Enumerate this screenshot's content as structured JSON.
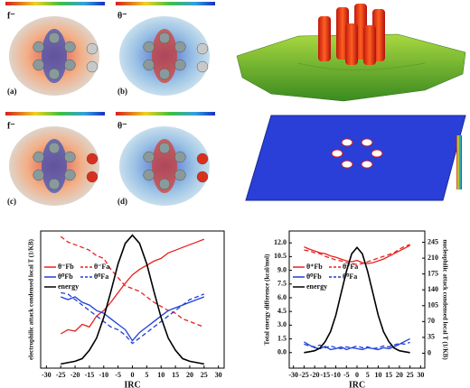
{
  "panels": [
    {
      "label": "f⁻",
      "tag": "(a)"
    },
    {
      "label": "θ⁻",
      "tag": "(b)"
    },
    {
      "label": "f⁻",
      "tag": "(c)"
    },
    {
      "label": "θ⁻",
      "tag": "(d)"
    }
  ],
  "chart_data": [
    {
      "type": "line",
      "xlabel": "IRC",
      "ylabel": "electrophilic attack condensed local T (1/KB)",
      "x": [
        -25,
        -22.5,
        -20,
        -17.5,
        -15,
        -12.5,
        -10,
        -7.5,
        -5,
        -2.5,
        0,
        2.5,
        5,
        7.5,
        10,
        12.5,
        15,
        17.5,
        20,
        22.5,
        25
      ],
      "xlim": [
        -32,
        32
      ],
      "xticks": [
        -30,
        -25,
        -20,
        -15,
        -10,
        -5,
        0,
        5,
        10,
        15,
        20,
        25,
        30
      ],
      "ylim": [
        0,
        100
      ],
      "legend": "left",
      "series": [
        {
          "name": "θ⁻Fb",
          "color": "#e8211f",
          "dash": false,
          "values": [
            25,
            28,
            27,
            32,
            30,
            38,
            42,
            48,
            55,
            62,
            68,
            72,
            75,
            78,
            80,
            84,
            86,
            88,
            90,
            92,
            94
          ]
        },
        {
          "name": "θ⁻Fa",
          "color": "#e8211f",
          "dash": true,
          "values": [
            96,
            92,
            90,
            88,
            86,
            82,
            80,
            72,
            66,
            60,
            58,
            56,
            52,
            48,
            45,
            42,
            40,
            36,
            34,
            32,
            30
          ]
        },
        {
          "name": "θ⁰Fb",
          "color": "#1f3fd6",
          "dash": false,
          "values": [
            52,
            50,
            52,
            48,
            46,
            42,
            40,
            36,
            32,
            28,
            20,
            26,
            30,
            34,
            38,
            42,
            44,
            46,
            48,
            50,
            52
          ]
        },
        {
          "name": "θ⁰Fa",
          "color": "#1f3fd6",
          "dash": true,
          "values": [
            55,
            54,
            50,
            46,
            42,
            38,
            34,
            30,
            28,
            24,
            18,
            22,
            26,
            30,
            34,
            38,
            42,
            46,
            50,
            52,
            54
          ]
        },
        {
          "name": "energy",
          "color": "#000000",
          "dash": false,
          "values": [
            3,
            4,
            5,
            7,
            13,
            22,
            37,
            56,
            76,
            91,
            97,
            91,
            76,
            56,
            37,
            22,
            13,
            7,
            5,
            4,
            3
          ]
        }
      ]
    },
    {
      "type": "line",
      "xlabel": "IRC",
      "ylabel": "Total energy difference (kcal/mol)",
      "y2label": "nucleophilic attack condensed local T (1/KB)",
      "x": [
        -25,
        -22.5,
        -20,
        -17.5,
        -15,
        -12.5,
        -10,
        -7.5,
        -5,
        -2.5,
        0,
        2.5,
        5,
        7.5,
        10,
        12.5,
        15,
        17.5,
        20,
        22.5,
        25
      ],
      "xlim": [
        -32,
        32
      ],
      "xticks": [
        -30,
        -25,
        -20,
        -15,
        -10,
        -5,
        0,
        5,
        10,
        15,
        20,
        25,
        30
      ],
      "ylim": [
        -1.7,
        13.3
      ],
      "yticks": [
        {
          "value": 0,
          "label": "0.0"
        },
        {
          "value": 1.5,
          "label": "1.5"
        },
        {
          "value": 3,
          "label": "3.0"
        },
        {
          "value": 4.5,
          "label": "4.5"
        },
        {
          "value": 6,
          "label": "6.0"
        },
        {
          "value": 7.5,
          "label": "7.5"
        },
        {
          "value": 9,
          "label": "9.0"
        },
        {
          "value": 10.5,
          "label": "10.5"
        },
        {
          "value": 12,
          "label": "12.0"
        }
      ],
      "y2lim": [
        -33,
        270
      ],
      "y2ticks": [
        0,
        35,
        70,
        105,
        140,
        175,
        210,
        245
      ],
      "legend": "left",
      "series": [
        {
          "name": "θ⁺Fb",
          "color": "#e8211f",
          "dash": false,
          "axis": "y2",
          "values": [
            235,
            230,
            226,
            222,
            220,
            215,
            212,
            208,
            204,
            202,
            205,
            200,
            198,
            200,
            204,
            208,
            214,
            220,
            226,
            232,
            238
          ]
        },
        {
          "name": "θ⁺Fa",
          "color": "#e8211f",
          "dash": true,
          "axis": "y2",
          "values": [
            228,
            226,
            222,
            220,
            214,
            210,
            206,
            204,
            200,
            198,
            196,
            198,
            202,
            206,
            210,
            214,
            218,
            222,
            230,
            236,
            240
          ]
        },
        {
          "name": "θ⁰Fb",
          "color": "#1f3fd6",
          "dash": false,
          "axis": "y2",
          "values": [
            25,
            18,
            12,
            10,
            15,
            8,
            10,
            14,
            8,
            12,
            10,
            8,
            12,
            10,
            8,
            12,
            10,
            14,
            20,
            26,
            32
          ]
        },
        {
          "name": "θ⁰Fa",
          "color": "#1f3fd6",
          "dash": true,
          "axis": "y2",
          "values": [
            20,
            16,
            14,
            18,
            12,
            16,
            12,
            10,
            14,
            12,
            16,
            12,
            14,
            10,
            12,
            16,
            14,
            18,
            22,
            20,
            24
          ]
        },
        {
          "name": "energy",
          "color": "#000000",
          "dash": false,
          "values": [
            0,
            0.1,
            0.2,
            0.5,
            1.2,
            2.3,
            4.1,
            6.5,
            8.9,
            10.8,
            11.5,
            10.8,
            8.9,
            6.5,
            4.1,
            2.3,
            1.2,
            0.5,
            0.2,
            0.1,
            0
          ]
        }
      ]
    }
  ]
}
